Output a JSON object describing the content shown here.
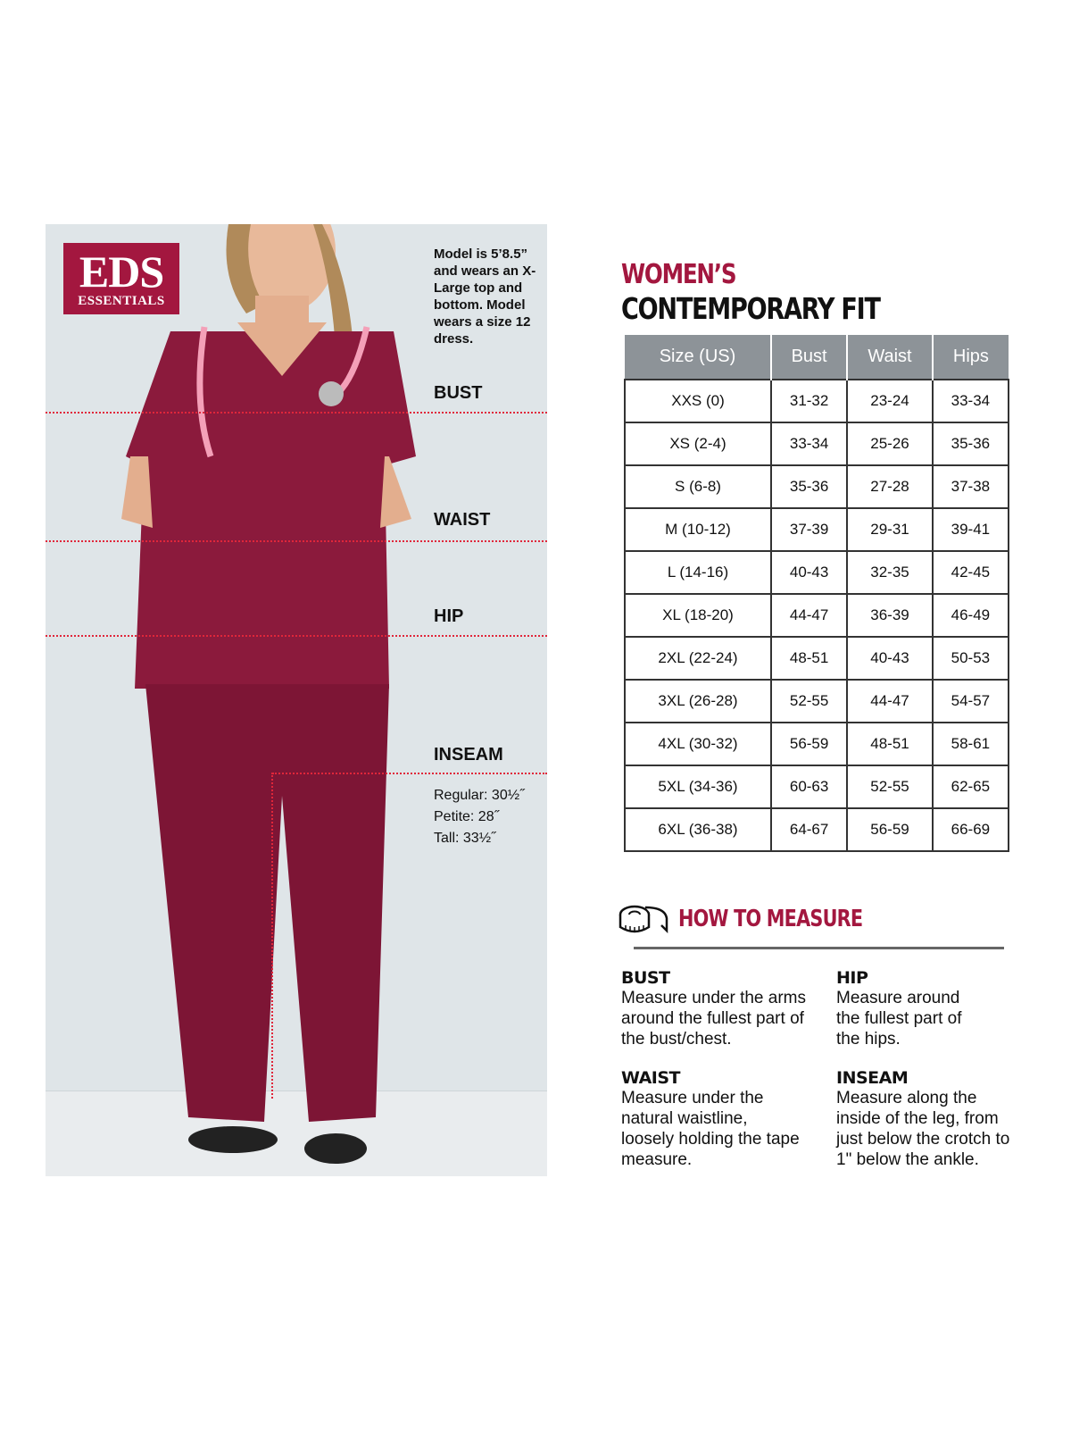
{
  "brand": {
    "logo_main": "EDS",
    "logo_sub": "ESSENTIALS"
  },
  "model_note": "Model is 5’8.5” and wears an X-Large top and bottom. Model wears a size 12 dress.",
  "labels": {
    "bust": "BUST",
    "waist": "WAIST",
    "hip": "HIP",
    "inseam": "INSEAM"
  },
  "inseam_lengths": [
    "Regular: 30½˝",
    "Petite: 28˝",
    "Tall: 33½˝"
  ],
  "title": {
    "line1": "WOMEN’S",
    "line2": "CONTEMPORARY FIT"
  },
  "colors": {
    "brand": "#a3173f",
    "garment": "#8b1a3c",
    "header": "#8d9398"
  },
  "size_table": {
    "headers": [
      "Size (US)",
      "Bust",
      "Waist",
      "Hips"
    ],
    "rows": [
      [
        "XXS (0)",
        "31-32",
        "23-24",
        "33-34"
      ],
      [
        "XS (2-4)",
        "33-34",
        "25-26",
        "35-36"
      ],
      [
        "S (6-8)",
        "35-36",
        "27-28",
        "37-38"
      ],
      [
        "M (10-12)",
        "37-39",
        "29-31",
        "39-41"
      ],
      [
        "L (14-16)",
        "40-43",
        "32-35",
        "42-45"
      ],
      [
        "XL (18-20)",
        "44-47",
        "36-39",
        "46-49"
      ],
      [
        "2XL (22-24)",
        "48-51",
        "40-43",
        "50-53"
      ],
      [
        "3XL (26-28)",
        "52-55",
        "44-47",
        "54-57"
      ],
      [
        "4XL (30-32)",
        "56-59",
        "48-51",
        "58-61"
      ],
      [
        "5XL (34-36)",
        "60-63",
        "52-55",
        "62-65"
      ],
      [
        "6XL (36-38)",
        "64-67",
        "56-59",
        "66-69"
      ]
    ]
  },
  "how_to_measure": {
    "icon": "tape-measure-icon",
    "title": "HOW TO MEASURE",
    "items": [
      {
        "heading": "BUST",
        "text": "Measure under the arms around the fullest part of the bust/chest."
      },
      {
        "heading": "HIP",
        "text": "Measure around the fullest part of the hips."
      },
      {
        "heading": "WAIST",
        "text": "Measure under the natural waistline, loosely holding the tape measure."
      },
      {
        "heading": "INSEAM",
        "text": "Measure along the inside of the leg, from just below the crotch to 1\" below the ankle."
      }
    ]
  }
}
